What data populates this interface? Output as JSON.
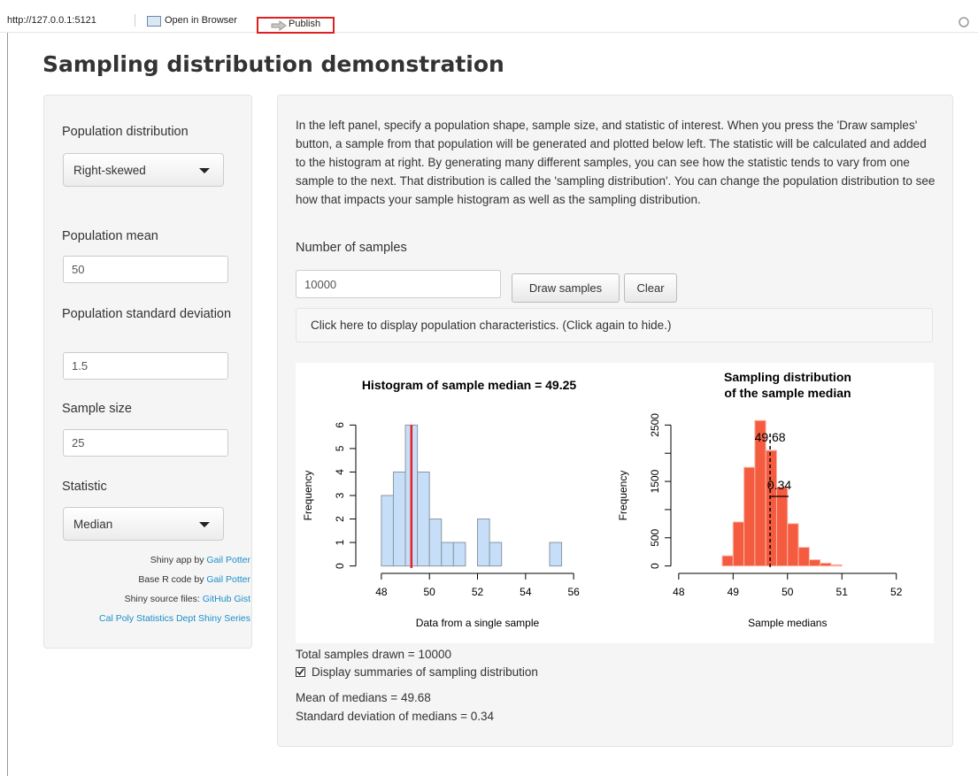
{
  "toolbar": {
    "url": "http://127.0.0.1:5121",
    "open_browser": "Open in Browser",
    "publish": "Publish"
  },
  "title": "Sampling distribution demonstration",
  "sidebar": {
    "population_distribution": {
      "label": "Population distribution",
      "value": "Right-skewed"
    },
    "population_mean": {
      "label": "Population mean",
      "value": "50"
    },
    "population_sd": {
      "label": "Population standard deviation",
      "value": "1.5"
    },
    "sample_size": {
      "label": "Sample size",
      "value": "25"
    },
    "statistic": {
      "label": "Statistic",
      "value": "Median"
    },
    "credits": [
      {
        "text": "Shiny app by",
        "link": "Gail Potter"
      },
      {
        "text": "Base R code by",
        "link": "Gail Potter"
      },
      {
        "text": "Shiny source files:",
        "link": "GitHub Gist"
      },
      {
        "text": "",
        "link": "Cal Poly Statistics Dept Shiny Series"
      }
    ]
  },
  "main": {
    "description": "In the left panel, specify a population shape, sample size, and statistic of interest. When you press the 'Draw samples' button, a sample from that population will be generated and plotted below left. The statistic will be calculated and added to the histogram at right. By generating many different samples, you can see how the statistic tends to vary from one sample to the next. That distribution is called the 'sampling distribution'. You can change the population distribution to see how that impacts your sample histogram as well as the sampling distribution.",
    "number_of_samples": {
      "label": "Number of samples",
      "value": "10000"
    },
    "draw_button": "Draw samples",
    "clear_button": "Clear",
    "population_link": "Click here to display population characteristics. (Click again to hide.)"
  },
  "chart_data": [
    {
      "type": "histogram",
      "title": [
        "Histogram of sample median = 49.25"
      ],
      "x_label": "Data from a single sample",
      "y_label": "Frequency",
      "bins": [
        48,
        48.5,
        49,
        49.5,
        50,
        50.5,
        51,
        51.5,
        52,
        52.5,
        53,
        53.5,
        54,
        54.5,
        55,
        55.5
      ],
      "values": [
        3,
        4,
        6,
        4,
        2,
        1,
        1,
        0,
        2,
        1,
        0,
        0,
        0,
        0,
        1
      ],
      "color": "#c6def7",
      "edge_color": "#8a97a3",
      "xlim": [
        46.9,
        56.4
      ],
      "ylim": [
        -0.24,
        6.24
      ],
      "xticks": [
        48,
        50,
        52,
        54,
        56
      ],
      "yticks": [
        0,
        1,
        2,
        3,
        4,
        5,
        6
      ],
      "vline": {
        "value": 49.25,
        "color": "#e8202a",
        "dashed": false,
        "annotate": false
      }
    },
    {
      "type": "histogram",
      "title": [
        "Sampling distribution",
        "of the sample median"
      ],
      "x_label": "Sample medians",
      "y_label": "Frequency",
      "bins": [
        48.8,
        49.0,
        49.2,
        49.4,
        49.6,
        49.8,
        50.0,
        50.2,
        50.4,
        50.6,
        50.8,
        51.0
      ],
      "values": [
        180,
        780,
        1750,
        2580,
        2050,
        1400,
        750,
        330,
        110,
        50,
        20
      ],
      "color": "#f45b3f",
      "edge_color": "#fbb5a8",
      "xlim": [
        47.84,
        52.2
      ],
      "ylim": [
        -100,
        2600
      ],
      "xticks": [
        48,
        49,
        50,
        51,
        52
      ],
      "yticks": [
        0,
        500,
        1500,
        2500
      ],
      "minor_yticks": [
        1000,
        2000
      ],
      "vline": {
        "value": 49.68,
        "color": "#000000",
        "dashed": true,
        "annotate": true
      },
      "sd_bar": 0.34
    }
  ],
  "summary": {
    "total": "Total samples drawn = 10000",
    "checkbox": {
      "label": "Display summaries of sampling distribution",
      "checked": true
    },
    "mean": "Mean of medians = 49.68",
    "sd": "Standard deviation of medians = 0.34"
  }
}
